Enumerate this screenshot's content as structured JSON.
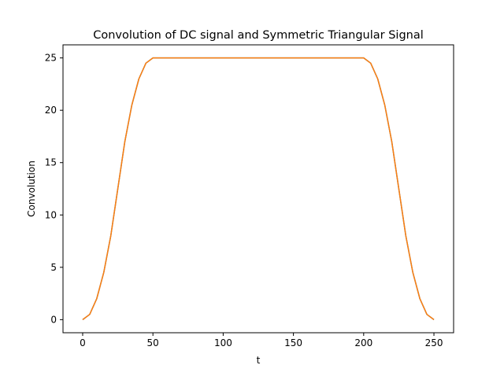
{
  "chart_data": {
    "type": "line",
    "title": "Convolution of DC signal and Symmetric Triangular Signal",
    "xlabel": "t",
    "ylabel": "Convolution",
    "xlim": [
      -14,
      264
    ],
    "ylim": [
      -1.25,
      26.25
    ],
    "x_ticks": [
      0,
      50,
      100,
      150,
      200,
      250
    ],
    "y_ticks": [
      0,
      5,
      10,
      15,
      20,
      25
    ],
    "grid": false,
    "series": [
      {
        "color": "#1f77b4",
        "x": [
          0,
          5,
          10,
          15,
          20,
          25,
          30,
          35,
          40,
          45,
          50,
          100,
          150,
          200,
          205,
          210,
          215,
          220,
          225,
          230,
          235,
          240,
          245,
          250
        ],
        "y": [
          0,
          0.5,
          2.0,
          4.5,
          8.0,
          12.5,
          17.0,
          20.5,
          23.0,
          24.5,
          25,
          25,
          25,
          25,
          24.5,
          23.0,
          20.5,
          17.0,
          12.5,
          8.0,
          4.5,
          2.0,
          0.5,
          0
        ]
      },
      {
        "color": "#ff7f0e",
        "x": [
          0,
          5,
          10,
          15,
          20,
          25,
          30,
          35,
          40,
          45,
          50,
          100,
          150,
          200,
          205,
          210,
          215,
          220,
          225,
          230,
          235,
          240,
          245,
          250
        ],
        "y": [
          0,
          0.5,
          2.0,
          4.5,
          8.0,
          12.5,
          17.0,
          20.5,
          23.0,
          24.5,
          25,
          25,
          25,
          25,
          24.5,
          23.0,
          20.5,
          17.0,
          12.5,
          8.0,
          4.5,
          2.0,
          0.5,
          0
        ]
      }
    ]
  }
}
